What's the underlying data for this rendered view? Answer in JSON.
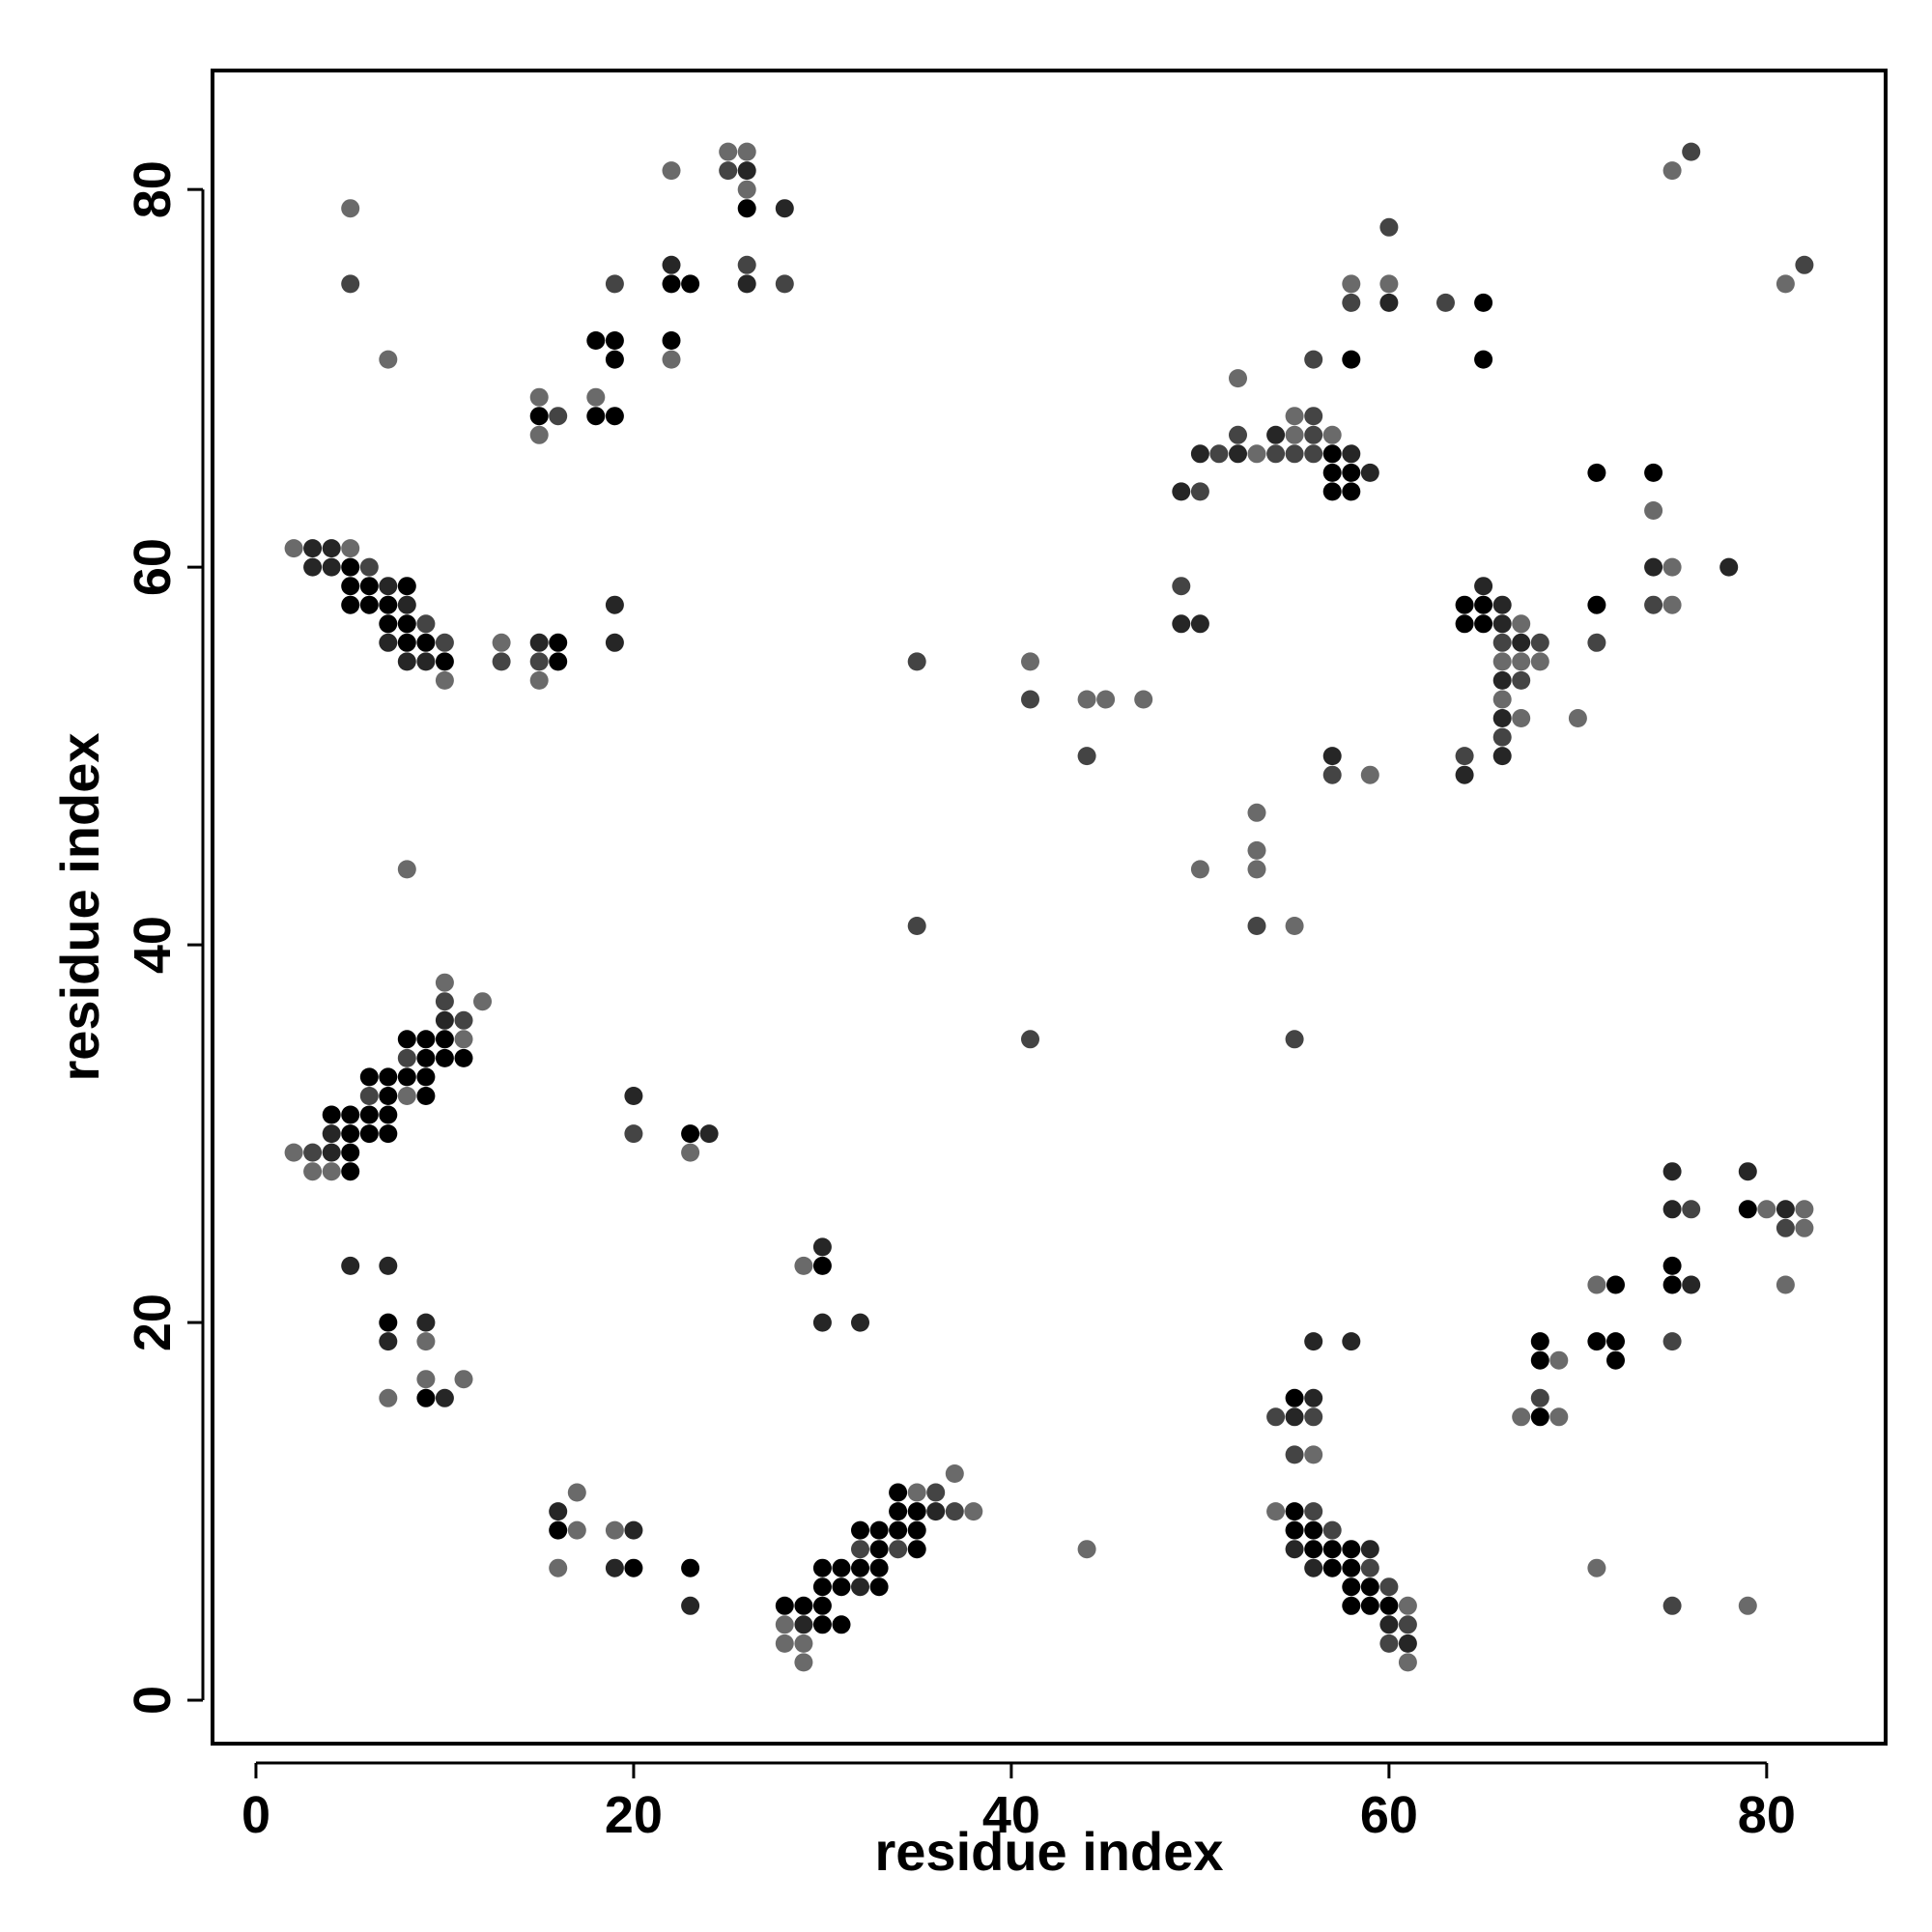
{
  "chart_data": {
    "type": "scatter",
    "title": "",
    "xlabel": "residue index",
    "ylabel": "residue index",
    "xlim": [
      -2.3,
      86.3
    ],
    "ylim": [
      -2.3,
      86.3
    ],
    "xticks": [
      0,
      20,
      40,
      60,
      80
    ],
    "yticks": [
      0,
      20,
      40,
      60,
      80
    ],
    "grid": false,
    "legend": "none",
    "shade_colors": {
      "1": "#000000",
      "2": "#262626",
      "3": "#444444",
      "4": "#6a6a6a"
    },
    "points": [
      [
        2,
        61,
        4
      ],
      [
        3,
        61,
        2
      ],
      [
        4,
        61,
        2
      ],
      [
        5,
        61,
        4
      ],
      [
        3,
        60,
        2
      ],
      [
        4,
        60,
        2
      ],
      [
        5,
        60,
        1
      ],
      [
        6,
        60,
        3
      ],
      [
        5,
        59,
        1
      ],
      [
        6,
        59,
        1
      ],
      [
        7,
        59,
        2
      ],
      [
        8,
        59,
        1
      ],
      [
        5,
        58,
        1
      ],
      [
        6,
        58,
        1
      ],
      [
        7,
        58,
        1
      ],
      [
        8,
        58,
        2
      ],
      [
        7,
        57,
        1
      ],
      [
        8,
        57,
        1
      ],
      [
        9,
        57,
        3
      ],
      [
        7,
        56,
        2
      ],
      [
        8,
        56,
        1
      ],
      [
        9,
        56,
        1
      ],
      [
        10,
        56,
        3
      ],
      [
        8,
        55,
        2
      ],
      [
        9,
        55,
        2
      ],
      [
        10,
        55,
        1
      ],
      [
        10,
        54,
        4
      ],
      [
        13,
        56,
        4
      ],
      [
        13,
        55,
        3
      ],
      [
        15,
        56,
        2
      ],
      [
        16,
        56,
        1
      ],
      [
        15,
        55,
        3
      ],
      [
        16,
        55,
        1
      ],
      [
        15,
        54,
        4
      ],
      [
        19,
        58,
        2
      ],
      [
        19,
        56,
        2
      ],
      [
        5,
        79,
        4
      ],
      [
        5,
        75,
        3
      ],
      [
        7,
        71,
        4
      ],
      [
        15,
        69,
        4
      ],
      [
        15,
        68,
        1
      ],
      [
        16,
        68,
        3
      ],
      [
        15,
        67,
        4
      ],
      [
        18,
        72,
        1
      ],
      [
        19,
        72,
        1
      ],
      [
        18,
        69,
        4
      ],
      [
        18,
        68,
        1
      ],
      [
        19,
        68,
        1
      ],
      [
        19,
        71,
        1
      ],
      [
        19,
        75,
        3
      ],
      [
        22,
        81,
        4
      ],
      [
        22,
        76,
        2
      ],
      [
        22,
        75,
        1
      ],
      [
        23,
        75,
        1
      ],
      [
        22,
        72,
        1
      ],
      [
        22,
        71,
        4
      ],
      [
        25,
        82,
        4
      ],
      [
        26,
        82,
        4
      ],
      [
        25,
        81,
        3
      ],
      [
        26,
        81,
        2
      ],
      [
        26,
        80,
        4
      ],
      [
        26,
        79,
        1
      ],
      [
        28,
        79,
        2
      ],
      [
        26,
        76,
        3
      ],
      [
        26,
        75,
        2
      ],
      [
        28,
        75,
        3
      ],
      [
        8,
        44,
        4
      ],
      [
        10,
        38,
        4
      ],
      [
        10,
        37,
        3
      ],
      [
        12,
        37,
        4
      ],
      [
        10,
        36,
        2
      ],
      [
        11,
        36,
        3
      ],
      [
        8,
        35,
        1
      ],
      [
        9,
        35,
        1
      ],
      [
        10,
        35,
        1
      ],
      [
        11,
        35,
        4
      ],
      [
        8,
        34,
        3
      ],
      [
        9,
        34,
        1
      ],
      [
        10,
        34,
        1
      ],
      [
        11,
        34,
        1
      ],
      [
        6,
        33,
        1
      ],
      [
        7,
        33,
        1
      ],
      [
        8,
        33,
        1
      ],
      [
        9,
        33,
        1
      ],
      [
        6,
        32,
        3
      ],
      [
        7,
        32,
        1
      ],
      [
        8,
        32,
        4
      ],
      [
        9,
        32,
        1
      ],
      [
        4,
        31,
        1
      ],
      [
        5,
        31,
        1
      ],
      [
        6,
        31,
        1
      ],
      [
        7,
        31,
        1
      ],
      [
        4,
        30,
        2
      ],
      [
        5,
        30,
        1
      ],
      [
        6,
        30,
        1
      ],
      [
        7,
        30,
        1
      ],
      [
        2,
        29,
        4
      ],
      [
        3,
        29,
        3
      ],
      [
        4,
        29,
        2
      ],
      [
        5,
        29,
        1
      ],
      [
        3,
        28,
        4
      ],
      [
        4,
        28,
        4
      ],
      [
        5,
        28,
        1
      ],
      [
        20,
        32,
        2
      ],
      [
        20,
        30,
        3
      ],
      [
        23,
        30,
        1
      ],
      [
        24,
        30,
        2
      ],
      [
        23,
        29,
        4
      ],
      [
        5,
        23,
        2
      ],
      [
        7,
        23,
        2
      ],
      [
        7,
        20,
        1
      ],
      [
        9,
        20,
        2
      ],
      [
        7,
        19,
        2
      ],
      [
        9,
        19,
        4
      ],
      [
        7,
        16,
        4
      ],
      [
        9,
        17,
        4
      ],
      [
        11,
        17,
        4
      ],
      [
        9,
        16,
        1
      ],
      [
        10,
        16,
        2
      ],
      [
        29,
        23,
        4
      ],
      [
        30,
        24,
        2
      ],
      [
        30,
        23,
        1
      ],
      [
        30,
        20,
        2
      ],
      [
        32,
        20,
        2
      ],
      [
        16,
        10,
        2
      ],
      [
        17,
        11,
        4
      ],
      [
        16,
        9,
        1
      ],
      [
        17,
        9,
        4
      ],
      [
        19,
        9,
        4
      ],
      [
        20,
        9,
        2
      ],
      [
        16,
        7,
        4
      ],
      [
        19,
        7,
        2
      ],
      [
        20,
        7,
        1
      ],
      [
        23,
        7,
        1
      ],
      [
        23,
        5,
        2
      ],
      [
        28,
        5,
        1
      ],
      [
        29,
        5,
        1
      ],
      [
        30,
        5,
        1
      ],
      [
        28,
        4,
        4
      ],
      [
        29,
        4,
        2
      ],
      [
        30,
        4,
        1
      ],
      [
        31,
        4,
        1
      ],
      [
        28,
        3,
        4
      ],
      [
        29,
        3,
        4
      ],
      [
        29,
        2,
        4
      ],
      [
        30,
        7,
        1
      ],
      [
        31,
        7,
        1
      ],
      [
        32,
        7,
        1
      ],
      [
        30,
        6,
        1
      ],
      [
        31,
        6,
        1
      ],
      [
        32,
        6,
        2
      ],
      [
        33,
        6,
        1
      ],
      [
        32,
        8,
        3
      ],
      [
        33,
        8,
        1
      ],
      [
        34,
        8,
        3
      ],
      [
        35,
        8,
        1
      ],
      [
        32,
        9,
        1
      ],
      [
        33,
        9,
        1
      ],
      [
        34,
        9,
        1
      ],
      [
        35,
        9,
        1
      ],
      [
        33,
        7,
        1
      ],
      [
        34,
        10,
        1
      ],
      [
        35,
        10,
        1
      ],
      [
        36,
        10,
        2
      ],
      [
        34,
        11,
        1
      ],
      [
        35,
        11,
        4
      ],
      [
        36,
        11,
        3
      ],
      [
        37,
        12,
        4
      ],
      [
        37,
        10,
        3
      ],
      [
        38,
        10,
        4
      ],
      [
        35,
        55,
        3
      ],
      [
        35,
        41,
        3
      ],
      [
        41,
        55,
        4
      ],
      [
        41,
        53,
        3
      ],
      [
        41,
        35,
        3
      ],
      [
        44,
        53,
        4
      ],
      [
        45,
        53,
        4
      ],
      [
        47,
        53,
        4
      ],
      [
        44,
        50,
        3
      ],
      [
        44,
        8,
        4
      ],
      [
        50,
        44,
        4
      ],
      [
        53,
        47,
        4
      ],
      [
        53,
        45,
        4
      ],
      [
        53,
        44,
        4
      ],
      [
        53,
        41,
        3
      ],
      [
        55,
        41,
        4
      ],
      [
        55,
        35,
        3
      ],
      [
        49,
        64,
        2
      ],
      [
        50,
        64,
        3
      ],
      [
        50,
        66,
        2
      ],
      [
        51,
        66,
        3
      ],
      [
        52,
        66,
        2
      ],
      [
        53,
        66,
        4
      ],
      [
        54,
        66,
        3
      ],
      [
        52,
        67,
        3
      ],
      [
        54,
        67,
        2
      ],
      [
        55,
        67,
        4
      ],
      [
        56,
        67,
        3
      ],
      [
        57,
        67,
        4
      ],
      [
        55,
        66,
        3
      ],
      [
        56,
        66,
        3
      ],
      [
        57,
        66,
        1
      ],
      [
        58,
        66,
        2
      ],
      [
        55,
        68,
        4
      ],
      [
        56,
        68,
        3
      ],
      [
        57,
        65,
        1
      ],
      [
        58,
        65,
        1
      ],
      [
        59,
        65,
        2
      ],
      [
        57,
        64,
        1
      ],
      [
        58,
        64,
        1
      ],
      [
        52,
        70,
        4
      ],
      [
        49,
        59,
        3
      ],
      [
        49,
        57,
        2
      ],
      [
        50,
        57,
        2
      ],
      [
        56,
        71,
        3
      ],
      [
        58,
        71,
        1
      ],
      [
        58,
        75,
        4
      ],
      [
        58,
        74,
        3
      ],
      [
        60,
        75,
        4
      ],
      [
        60,
        74,
        2
      ],
      [
        60,
        78,
        3
      ],
      [
        63,
        74,
        3
      ],
      [
        65,
        74,
        1
      ],
      [
        65,
        71,
        1
      ],
      [
        57,
        50,
        2
      ],
      [
        57,
        49,
        3
      ],
      [
        59,
        49,
        4
      ],
      [
        64,
        58,
        1
      ],
      [
        65,
        59,
        2
      ],
      [
        65,
        58,
        1
      ],
      [
        66,
        58,
        2
      ],
      [
        64,
        57,
        1
      ],
      [
        65,
        57,
        1
      ],
      [
        66,
        57,
        2
      ],
      [
        67,
        57,
        4
      ],
      [
        66,
        56,
        3
      ],
      [
        67,
        56,
        2
      ],
      [
        68,
        56,
        3
      ],
      [
        66,
        55,
        4
      ],
      [
        67,
        55,
        4
      ],
      [
        68,
        55,
        4
      ],
      [
        66,
        54,
        2
      ],
      [
        67,
        54,
        3
      ],
      [
        66,
        53,
        4
      ],
      [
        66,
        52,
        2
      ],
      [
        67,
        52,
        4
      ],
      [
        66,
        51,
        3
      ],
      [
        64,
        50,
        3
      ],
      [
        66,
        50,
        2
      ],
      [
        64,
        49,
        2
      ],
      [
        70,
        52,
        4
      ],
      [
        71,
        65,
        1
      ],
      [
        71,
        58,
        1
      ],
      [
        71,
        56,
        3
      ],
      [
        74,
        65,
        1
      ],
      [
        74,
        63,
        4
      ],
      [
        74,
        60,
        2
      ],
      [
        75,
        60,
        4
      ],
      [
        74,
        58,
        3
      ],
      [
        75,
        58,
        4
      ],
      [
        78,
        60,
        2
      ],
      [
        75,
        81,
        4
      ],
      [
        76,
        82,
        3
      ],
      [
        81,
        75,
        4
      ],
      [
        82,
        76,
        3
      ],
      [
        54,
        15,
        3
      ],
      [
        55,
        16,
        1
      ],
      [
        56,
        16,
        2
      ],
      [
        55,
        15,
        2
      ],
      [
        56,
        15,
        3
      ],
      [
        55,
        13,
        3
      ],
      [
        56,
        13,
        4
      ],
      [
        56,
        19,
        2
      ],
      [
        58,
        19,
        2
      ],
      [
        54,
        10,
        4
      ],
      [
        55,
        10,
        1
      ],
      [
        56,
        10,
        3
      ],
      [
        55,
        9,
        1
      ],
      [
        56,
        9,
        1
      ],
      [
        57,
        9,
        3
      ],
      [
        55,
        8,
        2
      ],
      [
        56,
        8,
        1
      ],
      [
        57,
        8,
        1
      ],
      [
        58,
        8,
        1
      ],
      [
        59,
        8,
        2
      ],
      [
        56,
        7,
        2
      ],
      [
        57,
        7,
        1
      ],
      [
        58,
        7,
        1
      ],
      [
        59,
        7,
        3
      ],
      [
        58,
        6,
        1
      ],
      [
        59,
        6,
        1
      ],
      [
        60,
        6,
        3
      ],
      [
        58,
        5,
        1
      ],
      [
        59,
        5,
        1
      ],
      [
        60,
        5,
        1
      ],
      [
        61,
        5,
        4
      ],
      [
        60,
        4,
        2
      ],
      [
        61,
        4,
        3
      ],
      [
        60,
        3,
        3
      ],
      [
        61,
        3,
        2
      ],
      [
        61,
        2,
        4
      ],
      [
        67,
        15,
        4
      ],
      [
        68,
        16,
        3
      ],
      [
        68,
        15,
        1
      ],
      [
        69,
        15,
        4
      ],
      [
        68,
        19,
        1
      ],
      [
        68,
        18,
        1
      ],
      [
        69,
        18,
        4
      ],
      [
        71,
        22,
        4
      ],
      [
        72,
        22,
        1
      ],
      [
        71,
        19,
        1
      ],
      [
        72,
        19,
        1
      ],
      [
        72,
        18,
        1
      ],
      [
        71,
        7,
        4
      ],
      [
        75,
        28,
        2
      ],
      [
        75,
        26,
        2
      ],
      [
        76,
        26,
        3
      ],
      [
        75,
        23,
        1
      ],
      [
        75,
        22,
        1
      ],
      [
        76,
        22,
        2
      ],
      [
        75,
        19,
        3
      ],
      [
        75,
        5,
        3
      ],
      [
        79,
        28,
        2
      ],
      [
        79,
        26,
        1
      ],
      [
        80,
        26,
        4
      ],
      [
        81,
        26,
        2
      ],
      [
        82,
        26,
        4
      ],
      [
        81,
        25,
        3
      ],
      [
        82,
        25,
        4
      ],
      [
        81,
        22,
        4
      ],
      [
        79,
        5,
        4
      ]
    ]
  }
}
